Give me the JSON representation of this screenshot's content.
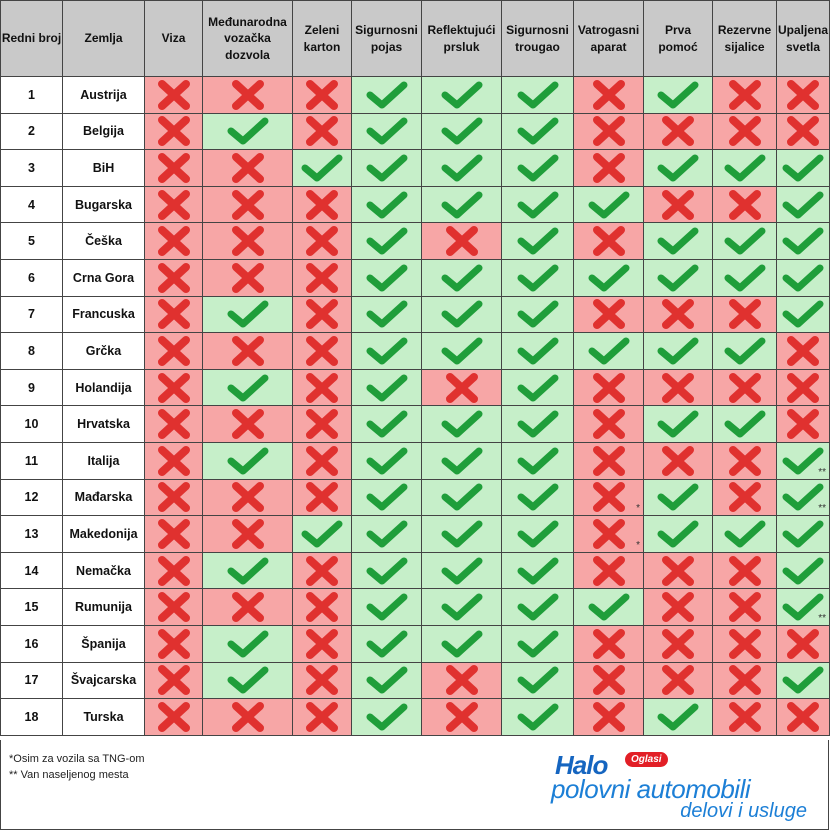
{
  "headers": [
    "Redni broj",
    "Zemlja",
    "Viza",
    "Međunarodna vozačka dozvola",
    "Zeleni karton",
    "Sigurnosni pojas",
    "Reflektujući prsluk",
    "Sigurnosni trougao",
    "Vatrogasni aparat",
    "Prva pomoć",
    "Rezervne sijalice",
    "Upaljena svetla"
  ],
  "rows": [
    {
      "num": "1",
      "country": "Austrija",
      "values": [
        0,
        0,
        0,
        1,
        1,
        1,
        0,
        1,
        0,
        0
      ],
      "marks": [
        "",
        "",
        "",
        "",
        "",
        "",
        "",
        "",
        "",
        ""
      ]
    },
    {
      "num": "2",
      "country": "Belgija",
      "values": [
        0,
        1,
        0,
        1,
        1,
        1,
        0,
        0,
        0,
        0
      ],
      "marks": [
        "",
        "",
        "",
        "",
        "",
        "",
        "",
        "",
        "",
        ""
      ]
    },
    {
      "num": "3",
      "country": "BiH",
      "values": [
        0,
        0,
        1,
        1,
        1,
        1,
        0,
        1,
        1,
        1
      ],
      "marks": [
        "",
        "",
        "",
        "",
        "",
        "",
        "",
        "",
        "",
        ""
      ]
    },
    {
      "num": "4",
      "country": "Bugarska",
      "values": [
        0,
        0,
        0,
        1,
        1,
        1,
        1,
        0,
        0,
        1
      ],
      "marks": [
        "",
        "",
        "",
        "",
        "",
        "",
        "",
        "",
        "",
        ""
      ]
    },
    {
      "num": "5",
      "country": "Češka",
      "values": [
        0,
        0,
        0,
        1,
        0,
        1,
        0,
        1,
        1,
        1
      ],
      "marks": [
        "",
        "",
        "",
        "",
        "",
        "",
        "",
        "",
        "",
        ""
      ]
    },
    {
      "num": "6",
      "country": "Crna Gora",
      "values": [
        0,
        0,
        0,
        1,
        1,
        1,
        1,
        1,
        1,
        1
      ],
      "marks": [
        "",
        "",
        "",
        "",
        "",
        "",
        "",
        "",
        "",
        ""
      ]
    },
    {
      "num": "7",
      "country": "Francuska",
      "values": [
        0,
        1,
        0,
        1,
        1,
        1,
        0,
        0,
        0,
        1
      ],
      "marks": [
        "",
        "",
        "",
        "",
        "",
        "",
        "",
        "",
        "",
        ""
      ]
    },
    {
      "num": "8",
      "country": "Grčka",
      "values": [
        0,
        0,
        0,
        1,
        1,
        1,
        1,
        1,
        1,
        0
      ],
      "marks": [
        "",
        "",
        "",
        "",
        "",
        "",
        "",
        "",
        "",
        ""
      ]
    },
    {
      "num": "9",
      "country": "Holandija",
      "values": [
        0,
        1,
        0,
        1,
        0,
        1,
        0,
        0,
        0,
        0
      ],
      "marks": [
        "",
        "",
        "",
        "",
        "",
        "",
        "",
        "",
        "",
        ""
      ]
    },
    {
      "num": "10",
      "country": "Hrvatska",
      "values": [
        0,
        0,
        0,
        1,
        1,
        1,
        0,
        1,
        1,
        0
      ],
      "marks": [
        "",
        "",
        "",
        "",
        "",
        "",
        "",
        "",
        "",
        ""
      ]
    },
    {
      "num": "11",
      "country": "Italija",
      "values": [
        0,
        1,
        0,
        1,
        1,
        1,
        0,
        0,
        0,
        1
      ],
      "marks": [
        "",
        "",
        "",
        "",
        "",
        "",
        "",
        "",
        "",
        "**"
      ]
    },
    {
      "num": "12",
      "country": "Mađarska",
      "values": [
        0,
        0,
        0,
        1,
        1,
        1,
        0,
        1,
        0,
        1
      ],
      "marks": [
        "",
        "",
        "",
        "",
        "",
        "",
        "*",
        "",
        "",
        "**"
      ]
    },
    {
      "num": "13",
      "country": "Makedonija",
      "values": [
        0,
        0,
        1,
        1,
        1,
        1,
        0,
        1,
        1,
        1
      ],
      "marks": [
        "",
        "",
        "",
        "",
        "",
        "",
        "*",
        "",
        "",
        ""
      ]
    },
    {
      "num": "14",
      "country": "Nemačka",
      "values": [
        0,
        1,
        0,
        1,
        1,
        1,
        0,
        0,
        0,
        1
      ],
      "marks": [
        "",
        "",
        "",
        "",
        "",
        "",
        "",
        "",
        "",
        ""
      ]
    },
    {
      "num": "15",
      "country": "Rumunija",
      "values": [
        0,
        0,
        0,
        1,
        1,
        1,
        1,
        0,
        0,
        1
      ],
      "marks": [
        "",
        "",
        "",
        "",
        "",
        "",
        "",
        "",
        "",
        "**"
      ]
    },
    {
      "num": "16",
      "country": "Španija",
      "values": [
        0,
        1,
        0,
        1,
        1,
        1,
        0,
        0,
        0,
        0
      ],
      "marks": [
        "",
        "",
        "",
        "",
        "",
        "",
        "",
        "",
        "",
        ""
      ]
    },
    {
      "num": "17",
      "country": "Švajcarska",
      "values": [
        0,
        1,
        0,
        1,
        0,
        1,
        0,
        0,
        0,
        1
      ],
      "marks": [
        "",
        "",
        "",
        "",
        "",
        "",
        "",
        "",
        "",
        ""
      ]
    },
    {
      "num": "18",
      "country": "Turska",
      "values": [
        0,
        0,
        0,
        1,
        0,
        1,
        0,
        1,
        0,
        0
      ],
      "marks": [
        "",
        "",
        "",
        "",
        "",
        "",
        "",
        "",
        "",
        ""
      ]
    }
  ],
  "notes": {
    "note1": "*Osim za vozila sa TNG-om",
    "note2": "** Van naseljenog mesta"
  },
  "logo": {
    "halo": "Halo",
    "badge": "Oglasi",
    "line1": "polovni automobili",
    "line2": "delovi i usluge"
  },
  "icons": {
    "yes": "check-icon",
    "no": "cross-icon"
  },
  "colors": {
    "yes_bg": "#c6efc9",
    "no_bg": "#f7a6a6",
    "check": "#1f9e3a",
    "cross": "#e0312f",
    "header_bg": "#c9c9c9",
    "logo_blue": "#1c7fd6",
    "logo_red": "#e21f26"
  }
}
